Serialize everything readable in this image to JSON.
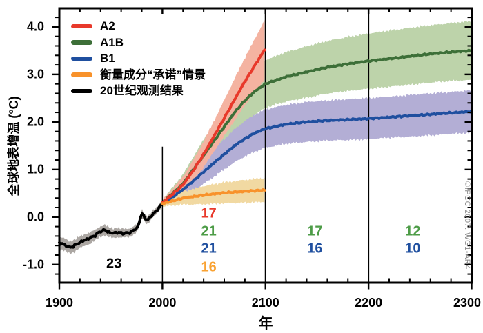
{
  "watermark": "©IPCC 2007: WG1-AR4",
  "legend": {
    "items": [
      {
        "label": "A2",
        "color": "#e8392b"
      },
      {
        "label": "A1B",
        "color": "#3d6f38"
      },
      {
        "label": "B1",
        "color": "#1f4f9f"
      },
      {
        "label": "衡量成分“承诺”情景",
        "color": "#f8922b"
      },
      {
        "label": "20世纪观测结果",
        "color": "#000000"
      }
    ]
  },
  "axes": {
    "x": {
      "label": "年",
      "major": [
        1900,
        2000,
        2100,
        2200,
        2300
      ],
      "tick_labels": [
        "1900",
        "2000",
        "2100",
        "2200",
        "2300"
      ],
      "minor_step": 20
    },
    "y": {
      "label": "全球地表增温 (°C)",
      "major": [
        -1,
        0,
        1,
        2,
        3,
        4
      ],
      "tick_labels": [
        "-1.0",
        "0.0",
        "1.0",
        "2.0",
        "3.0",
        "4.0"
      ],
      "minor_step": 0.2
    }
  },
  "chart_data": {
    "type": "line",
    "title": "",
    "xlabel": "年",
    "ylabel": "全球地表增温 (°C)",
    "xlim": [
      1900,
      2300
    ],
    "ylim": [
      -1.38,
      4.39
    ],
    "grid": false,
    "legend_position": "top-left",
    "vlines": [
      {
        "year": 2000,
        "v_top": 1.48,
        "width": 1.5
      },
      {
        "year": 2100,
        "v_top": null,
        "width": 2
      },
      {
        "year": 2200,
        "v_top": null,
        "width": 2
      }
    ],
    "series": [
      {
        "name": "20世纪观测结果",
        "color": "#000000",
        "band_color": "#aca7a3",
        "x": [
          1900,
          1905,
          1910,
          1915,
          1920,
          1925,
          1930,
          1935,
          1940,
          1944,
          1948,
          1952,
          1956,
          1960,
          1964,
          1968,
          1972,
          1976,
          1980,
          1983,
          1986,
          1990,
          1994,
          1998,
          2000
        ],
        "y": [
          -0.55,
          -0.58,
          -0.64,
          -0.6,
          -0.53,
          -0.48,
          -0.44,
          -0.38,
          -0.3,
          -0.27,
          -0.32,
          -0.34,
          -0.32,
          -0.34,
          -0.34,
          -0.33,
          -0.28,
          -0.22,
          0.08,
          -0.02,
          -0.07,
          0.05,
          0.12,
          0.24,
          0.28
        ],
        "hw": [
          0.13,
          0.13,
          0.13,
          0.13,
          0.12,
          0.12,
          0.12,
          0.11,
          0.11,
          0.11,
          0.1,
          0.1,
          0.1,
          0.09,
          0.09,
          0.09,
          0.09,
          0.08,
          0.08,
          0.08,
          0.08,
          0.07,
          0.07,
          0.07,
          0.07
        ]
      },
      {
        "name": "A1B",
        "color": "#3d6f38",
        "band_color": "#bdd3aa",
        "x": [
          2000,
          2010,
          2020,
          2030,
          2040,
          2050,
          2060,
          2070,
          2080,
          2090,
          2100,
          2120,
          2140,
          2160,
          2180,
          2200,
          2220,
          2240,
          2260,
          2280,
          2300
        ],
        "y": [
          0.3,
          0.5,
          0.7,
          1.0,
          1.3,
          1.6,
          1.9,
          2.2,
          2.45,
          2.65,
          2.8,
          2.95,
          3.05,
          3.15,
          3.22,
          3.28,
          3.33,
          3.38,
          3.43,
          3.47,
          3.5
        ],
        "hw": [
          0.06,
          0.13,
          0.2,
          0.27,
          0.33,
          0.38,
          0.42,
          0.45,
          0.47,
          0.49,
          0.5,
          0.52,
          0.54,
          0.55,
          0.57,
          0.58,
          0.59,
          0.6,
          0.6,
          0.61,
          0.62
        ]
      },
      {
        "name": "B1",
        "color": "#1f4f9f",
        "band_color": "#b3aed5",
        "x": [
          2000,
          2010,
          2020,
          2030,
          2040,
          2050,
          2060,
          2070,
          2080,
          2090,
          2100,
          2120,
          2140,
          2160,
          2180,
          2200,
          2220,
          2240,
          2260,
          2280,
          2300
        ],
        "y": [
          0.28,
          0.42,
          0.58,
          0.76,
          0.95,
          1.14,
          1.32,
          1.5,
          1.65,
          1.77,
          1.86,
          1.95,
          2.0,
          2.03,
          2.05,
          2.07,
          2.1,
          2.13,
          2.16,
          2.19,
          2.22
        ],
        "hw": [
          0.06,
          0.11,
          0.16,
          0.21,
          0.25,
          0.29,
          0.32,
          0.35,
          0.37,
          0.39,
          0.4,
          0.41,
          0.42,
          0.42,
          0.43,
          0.43,
          0.43,
          0.44,
          0.44,
          0.44,
          0.45
        ]
      },
      {
        "name": "A2",
        "color": "#e8392b",
        "band_color": "#f4b3a1",
        "x": [
          2000,
          2010,
          2020,
          2030,
          2040,
          2050,
          2060,
          2070,
          2080,
          2090,
          2100
        ],
        "y": [
          0.3,
          0.48,
          0.68,
          0.98,
          1.32,
          1.7,
          2.08,
          2.47,
          2.85,
          3.2,
          3.55
        ],
        "hw": [
          0.06,
          0.12,
          0.17,
          0.22,
          0.27,
          0.32,
          0.38,
          0.44,
          0.5,
          0.56,
          0.63
        ]
      },
      {
        "name": "衡量成分“承诺”情景",
        "color": "#f8922b",
        "band_color": "#f1d9a2",
        "x": [
          2000,
          2020,
          2040,
          2060,
          2080,
          2100
        ],
        "y": [
          0.28,
          0.4,
          0.46,
          0.51,
          0.54,
          0.57
        ],
        "hw": [
          0.06,
          0.14,
          0.19,
          0.22,
          0.24,
          0.25
        ]
      }
    ],
    "annotations": [
      {
        "text": "23",
        "color": "#000000",
        "year": 1953,
        "value": -0.99
      },
      {
        "text": "17",
        "color": "#e8392b",
        "year": 2045,
        "value": 0.07
      },
      {
        "text": "21",
        "color": "#4d9c47",
        "year": 2045,
        "value": -0.31
      },
      {
        "text": "21",
        "color": "#1f4f9f",
        "year": 2045,
        "value": -0.67
      },
      {
        "text": "16",
        "color": "#f9a232",
        "year": 2045,
        "value": -1.06
      },
      {
        "text": "17",
        "color": "#4d9c47",
        "year": 2148,
        "value": -0.31
      },
      {
        "text": "16",
        "color": "#1f4f9f",
        "year": 2148,
        "value": -0.67
      },
      {
        "text": "12",
        "color": "#4d9c47",
        "year": 2243,
        "value": -0.31
      },
      {
        "text": "10",
        "color": "#1f4f9f",
        "year": 2243,
        "value": -0.67
      }
    ]
  }
}
